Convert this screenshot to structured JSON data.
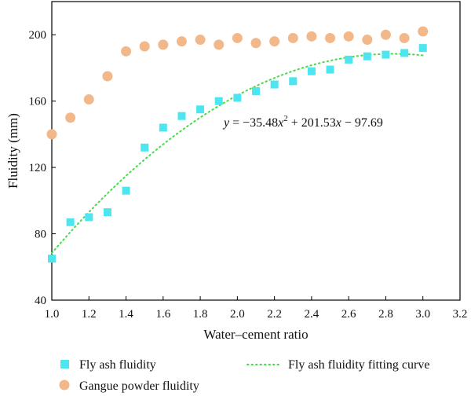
{
  "chart_data": {
    "type": "scatter",
    "title": "",
    "xlabel": "Water–cement ratio",
    "ylabel": "Fluidity (mm)",
    "xlim": [
      1.0,
      3.2
    ],
    "ylim": [
      40,
      220
    ],
    "x_ticks": [
      "1.0",
      "1.2",
      "1.4",
      "1.6",
      "1.8",
      "2.0",
      "2.2",
      "2.4",
      "2.6",
      "2.8",
      "3.0",
      "3.2"
    ],
    "y_ticks": [
      "40",
      "80",
      "120",
      "160",
      "200"
    ],
    "series": [
      {
        "name": "Fly ash fluidity",
        "marker": "square",
        "color": "#4de6f0",
        "x": [
          1.0,
          1.1,
          1.2,
          1.3,
          1.4,
          1.5,
          1.6,
          1.7,
          1.8,
          1.9,
          2.0,
          2.1,
          2.2,
          2.3,
          2.4,
          2.5,
          2.6,
          2.7,
          2.8,
          2.9,
          3.0
        ],
        "values": [
          65,
          87,
          90,
          93,
          106,
          132,
          144,
          151,
          155,
          160,
          162,
          166,
          170,
          172,
          178,
          179,
          185,
          187,
          188,
          189,
          192
        ]
      },
      {
        "name": "Gangue powder fluidity",
        "marker": "circle",
        "color": "#f2b88a",
        "x": [
          1.0,
          1.1,
          1.2,
          1.3,
          1.4,
          1.5,
          1.6,
          1.7,
          1.8,
          1.9,
          2.0,
          2.1,
          2.2,
          2.3,
          2.4,
          2.5,
          2.6,
          2.7,
          2.8,
          2.9,
          3.0
        ],
        "values": [
          140,
          150,
          161,
          175,
          190,
          193,
          194,
          196,
          197,
          194,
          198,
          195,
          196,
          198,
          199,
          198,
          199,
          197,
          200,
          198,
          202
        ]
      },
      {
        "name": "Fly ash fluidity fitting curve",
        "marker": "dotted-line",
        "color": "#44dd44",
        "equation": "y = −35.48x² + 201.53x − 97.69",
        "coefficients": {
          "a": -35.48,
          "b": 201.53,
          "c": -97.69
        },
        "x_range": [
          1.0,
          3.0
        ]
      }
    ],
    "equation_parts": {
      "y": "y",
      "eq_a": " = −35.48",
      "x1": "x",
      "sup": "2",
      "eq_b": " + 201.53",
      "x2": "x",
      "eq_c": " − 97.69"
    },
    "legend": {
      "placement": "bottom",
      "entries": [
        "Fly ash fluidity",
        "Fly ash fluidity fitting curve",
        "Gangue powder fluidity"
      ]
    }
  }
}
